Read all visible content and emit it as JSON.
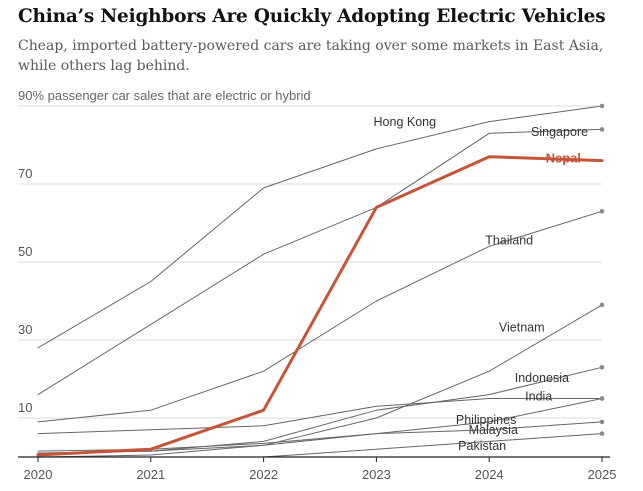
{
  "header": {
    "title": "China’s Neighbors Are Quickly Adopting Electric Vehicles",
    "subtitle": "Cheap, imported battery-powered cars are taking over some markets in East Asia, while others lag behind."
  },
  "colors": {
    "highlight": "#c5543a",
    "series": "#666666",
    "grid": "#dcdcdc",
    "axis": "#222222"
  },
  "chart_data": {
    "type": "line",
    "ylabel": "passenger car sales that are electric or hybrid",
    "ylim": [
      0,
      90
    ],
    "y_ticks": [
      10,
      30,
      50,
      70,
      90
    ],
    "y_unit": "%",
    "x": [
      2020,
      2021,
      2022,
      2023,
      2024,
      2025
    ],
    "grid": true,
    "series": [
      {
        "name": "Hong Kong",
        "values": [
          28,
          45,
          69,
          79,
          86,
          90
        ],
        "highlight": false
      },
      {
        "name": "Singapore",
        "values": [
          16,
          34,
          52,
          64,
          83,
          84
        ],
        "highlight": false
      },
      {
        "name": "Nepal",
        "values": [
          0.5,
          2,
          12,
          64,
          77,
          76
        ],
        "highlight": true
      },
      {
        "name": "Thailand",
        "values": [
          9,
          12,
          22,
          40,
          54,
          63
        ],
        "highlight": false
      },
      {
        "name": "Vietnam",
        "values": [
          0,
          0.5,
          3,
          10,
          22,
          39
        ],
        "highlight": false
      },
      {
        "name": "Indonesia",
        "values": [
          1,
          1.5,
          4,
          12,
          16,
          23
        ],
        "highlight": false
      },
      {
        "name": "India",
        "values": [
          6,
          7,
          8,
          13,
          15,
          15
        ],
        "highlight": false
      },
      {
        "name": "Philippines",
        "values": [
          1,
          1.5,
          3,
          6,
          9,
          15
        ],
        "highlight": false
      },
      {
        "name": "Malaysia",
        "values": [
          1.5,
          2,
          3.5,
          6,
          7,
          9
        ],
        "highlight": false
      },
      {
        "name": "Pakistan",
        "values": [
          0,
          0,
          0,
          2,
          4,
          6
        ],
        "highlight": false
      }
    ]
  }
}
